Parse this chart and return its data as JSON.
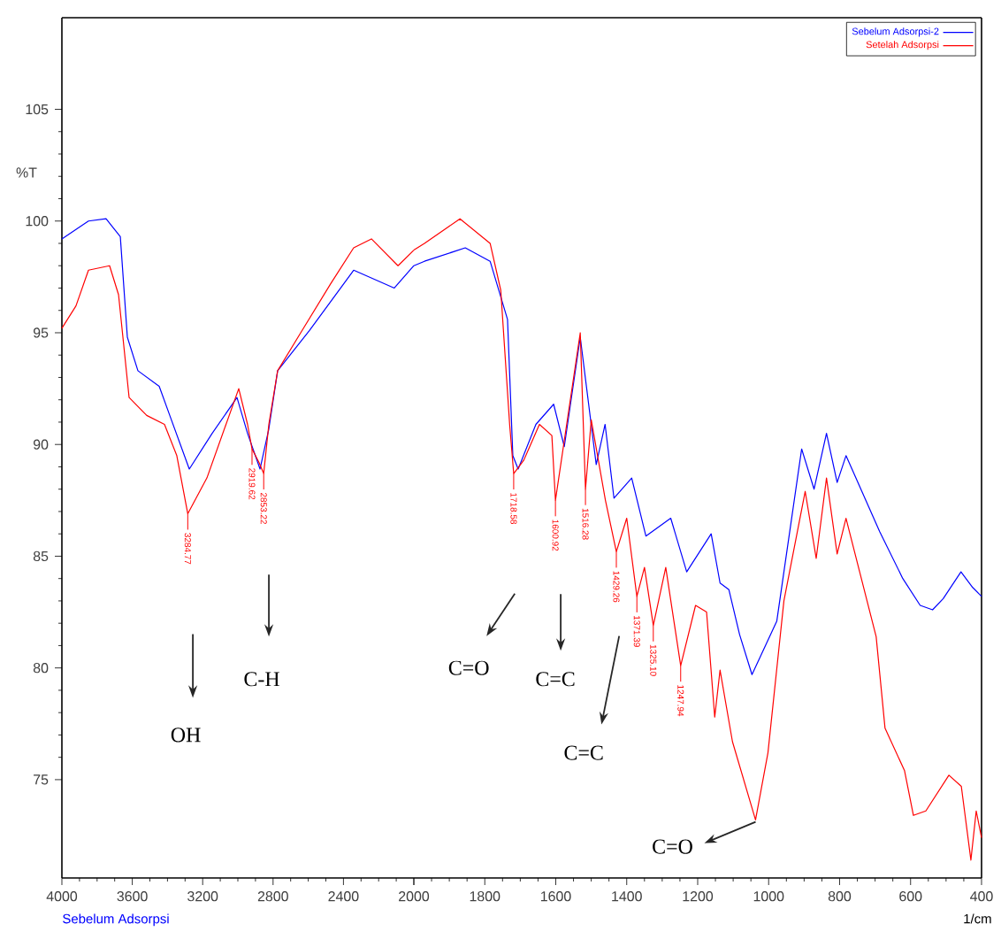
{
  "chart_data": [
    {
      "type": "line",
      "ylabel": "%T",
      "series": [
        {
          "color": "#0000ff",
          "x": [
            4000,
            3849,
            3749,
            3668,
            3628,
            3568,
            3447,
            3387,
            3276,
            3146,
            3005,
            2945,
            2874,
            2824,
            2774,
            2593,
            2342,
            2111,
            2000
          ],
          "values": [
            99.2,
            100.0,
            100.1,
            99.3,
            94.8,
            93.3,
            92.6,
            91.3,
            88.9,
            90.5,
            92.1,
            90.5,
            88.9,
            90.7,
            93.3,
            95.1,
            97.8,
            97.0,
            98.0
          ]
        },
        {
          "color": "#ff0000",
          "x": [
            4000,
            3920,
            3849,
            3729,
            3678,
            3618,
            3518,
            3417,
            3347,
            3284.77,
            3176,
            2995,
            2945,
            2919.62,
            2880,
            2853.22,
            2824,
            2774,
            2643,
            2472,
            2342,
            2241,
            2090,
            2000
          ],
          "values": [
            95.2,
            96.2,
            97.8,
            98.0,
            96.7,
            92.1,
            91.3,
            90.9,
            89.5,
            86.9,
            88.5,
            92.5,
            90.9,
            89.8,
            89.2,
            88.7,
            90.9,
            93.3,
            95.0,
            97.2,
            98.8,
            99.2,
            98.0,
            98.7
          ]
        }
      ],
      "xlim": [
        4000,
        2000
      ],
      "xticks": [
        4000,
        3600,
        3200,
        2800,
        2400,
        {
          "value": 2000,
          "label": null
        }
      ],
      "ylim": [
        70.6,
        109.1
      ],
      "yticks": [
        75,
        80,
        85,
        90,
        95,
        100,
        105
      ],
      "grid": false,
      "marker": "none",
      "line_style": "solid",
      "annotations": [
        {
          "text": "3284.77",
          "x": 3284.77,
          "y": 86.9
        },
        {
          "text": "2919.62",
          "x": 2919.62,
          "y": 89.8
        },
        {
          "text": "2853.22",
          "x": 2853.22,
          "y": 88.7
        },
        "OH",
        "C-H",
        "Sebelum Adsorpsi"
      ]
    },
    {
      "type": "line",
      "xlabel": "1/cm",
      "series": [
        {
          "name": "Sebelum Adsorpsi-2",
          "color": "#0000ff",
          "x": [
            2000,
            1970,
            1855,
            1785,
            1736,
            1721,
            1706,
            1656,
            1606,
            1576,
            1531,
            1486,
            1461,
            1436,
            1386,
            1346,
            1276,
            1231,
            1162,
            1137,
            1112,
            1082,
            1047,
            977,
            907,
            872,
            837,
            807,
            782,
            687,
            622,
            573,
            538,
            508,
            458,
            425,
            400
          ],
          "values": [
            98.0,
            98.2,
            98.8,
            98.2,
            95.6,
            89.5,
            88.9,
            90.9,
            91.8,
            89.9,
            94.8,
            89.1,
            90.9,
            87.6,
            88.5,
            85.9,
            86.7,
            84.3,
            86.0,
            83.8,
            83.5,
            81.5,
            79.7,
            82.1,
            89.8,
            88.0,
            90.5,
            88.3,
            89.5,
            86.1,
            84.0,
            82.8,
            82.6,
            83.1,
            84.3,
            83.6,
            83.2
          ]
        },
        {
          "name": "Setelah Adsorpsi",
          "color": "#ff0000",
          "x": [
            2000,
            1970,
            1870,
            1785,
            1755,
            1730,
            1718.58,
            1690,
            1646,
            1611,
            1600.92,
            1531,
            1516.28,
            1500,
            1460,
            1429.26,
            1400,
            1371.39,
            1350,
            1325.1,
            1290,
            1247.94,
            1206,
            1175,
            1152,
            1137,
            1102,
            1037,
            1002,
            957,
            897,
            866,
            837,
            807,
            782,
            697,
            672,
            617,
            592,
            557,
            492,
            457,
            430,
            415,
            400
          ],
          "values": [
            98.7,
            99.0,
            100.1,
            99.0,
            96.9,
            90.9,
            88.7,
            89.3,
            90.9,
            90.4,
            87.5,
            95.0,
            88.0,
            91.1,
            87.5,
            85.2,
            86.7,
            83.2,
            84.5,
            81.9,
            84.5,
            80.1,
            82.8,
            82.5,
            77.8,
            79.9,
            76.7,
            73.2,
            76.2,
            83.0,
            87.9,
            84.9,
            88.5,
            85.1,
            86.7,
            81.4,
            77.3,
            75.4,
            73.4,
            73.6,
            75.2,
            74.7,
            71.4,
            73.6,
            72.4
          ]
        }
      ],
      "xlim": [
        2000,
        400
      ],
      "xticks": [
        2000,
        1800,
        1600,
        1400,
        1200,
        1000,
        800,
        600,
        400
      ],
      "ylim": [
        70.6,
        109.1
      ],
      "tick_labels": "x",
      "legend": "top right",
      "grid": false,
      "marker": "none",
      "line_style": "solid",
      "annotations": [
        {
          "text": "1718.58",
          "x": 1718.58,
          "y": 88.7
        },
        {
          "text": "1600.92",
          "x": 1600.92,
          "y": 87.5
        },
        {
          "text": "1516.28",
          "x": 1516.28,
          "y": 88.0
        },
        {
          "text": "1429.26",
          "x": 1429.26,
          "y": 85.2
        },
        {
          "text": "1371.39",
          "x": 1371.39,
          "y": 83.2
        },
        {
          "text": "1325.10",
          "x": 1325.1,
          "y": 81.9
        },
        {
          "text": "1247.94",
          "x": 1247.94,
          "y": 80.1
        },
        "C=O",
        "C=C",
        "C=C",
        "C=O"
      ]
    }
  ]
}
